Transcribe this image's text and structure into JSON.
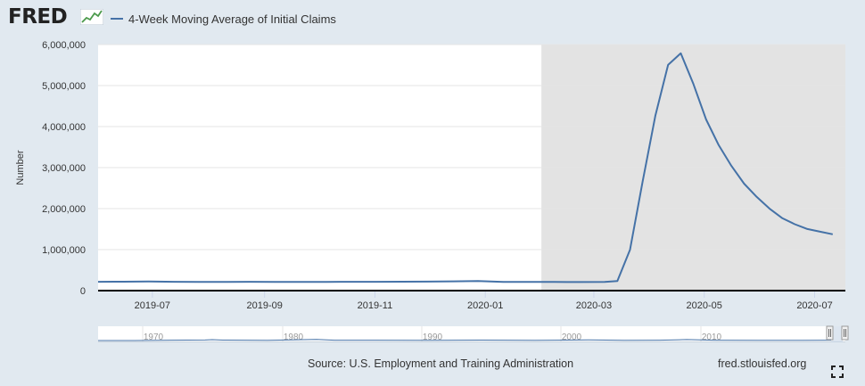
{
  "header": {
    "logo_text": "FRED",
    "legend_label": "4-Week Moving Average of Initial Claims"
  },
  "footer": {
    "source": "Source: U.S. Employment and Training Administration",
    "site": "fred.stlouisfed.org"
  },
  "icons": {
    "logo_mark": "fred-chart-icon",
    "fullscreen": "expand-icon"
  },
  "colors": {
    "series": "#4572a7",
    "recession": "#e3e3e3",
    "background": "#e1e9f0"
  },
  "chart_data": {
    "type": "line",
    "title": "",
    "xlabel": "",
    "ylabel": "Number",
    "x_range": [
      "2019-06-01",
      "2020-07-18"
    ],
    "ylim": [
      0,
      6000000
    ],
    "yticks": [
      0,
      1000000,
      2000000,
      3000000,
      4000000,
      5000000,
      6000000
    ],
    "ytick_labels": [
      "0",
      "1,000,000",
      "2,000,000",
      "3,000,000",
      "4,000,000",
      "5,000,000",
      "6,000,000"
    ],
    "xticks": [
      "2019-07-01",
      "2019-09-01",
      "2019-11-01",
      "2020-01-01",
      "2020-03-01",
      "2020-05-01",
      "2020-07-01"
    ],
    "xtick_labels": [
      "2019-07",
      "2019-09",
      "2019-11",
      "2020-01",
      "2020-03",
      "2020-05",
      "2020-07"
    ],
    "grid": true,
    "recession_shading": {
      "start": "2020-02-01",
      "end": "2020-07-18"
    },
    "series": [
      {
        "name": "4-Week Moving Average of Initial Claims",
        "points": [
          [
            "2019-06-01",
            216000
          ],
          [
            "2019-06-15",
            218000
          ],
          [
            "2019-06-29",
            222000
          ],
          [
            "2019-07-13",
            216000
          ],
          [
            "2019-07-27",
            212000
          ],
          [
            "2019-08-10",
            214000
          ],
          [
            "2019-08-24",
            215000
          ],
          [
            "2019-09-07",
            213000
          ],
          [
            "2019-09-21",
            212000
          ],
          [
            "2019-10-05",
            213000
          ],
          [
            "2019-10-19",
            215000
          ],
          [
            "2019-11-02",
            216000
          ],
          [
            "2019-11-16",
            218000
          ],
          [
            "2019-11-30",
            220000
          ],
          [
            "2019-12-14",
            225000
          ],
          [
            "2019-12-28",
            232000
          ],
          [
            "2020-01-11",
            214000
          ],
          [
            "2020-01-25",
            213000
          ],
          [
            "2020-02-08",
            211000
          ],
          [
            "2020-02-22",
            209000
          ],
          [
            "2020-03-07",
            212000
          ],
          [
            "2020-03-14",
            232000
          ],
          [
            "2020-03-21",
            998000
          ],
          [
            "2020-03-28",
            2667000
          ],
          [
            "2020-04-04",
            4266000
          ],
          [
            "2020-04-11",
            5505000
          ],
          [
            "2020-04-18",
            5787000
          ],
          [
            "2020-04-25",
            5036000
          ],
          [
            "2020-05-02",
            4173000
          ],
          [
            "2020-05-09",
            3546000
          ],
          [
            "2020-05-16",
            3041000
          ],
          [
            "2020-05-23",
            2608000
          ],
          [
            "2020-05-30",
            2284000
          ],
          [
            "2020-06-06",
            2002000
          ],
          [
            "2020-06-13",
            1770000
          ],
          [
            "2020-06-20",
            1620000
          ],
          [
            "2020-06-27",
            1503000
          ],
          [
            "2020-07-04",
            1436000
          ],
          [
            "2020-07-11",
            1375000
          ]
        ]
      }
    ],
    "navigator": {
      "tick_labels": [
        "1970",
        "1980",
        "1990",
        "2000",
        "2010"
      ]
    }
  }
}
